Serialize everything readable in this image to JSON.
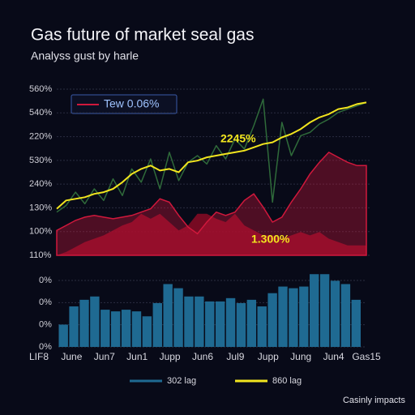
{
  "title": "Gas future of market seal gas",
  "subtitle": "Analyss gust by harle",
  "footer": "Casinly impacts",
  "annotations": [
    "2245%",
    "1.300%"
  ],
  "categories": [
    "LIF8",
    "June",
    "Jun7",
    "Jun1",
    "Jupp",
    "Jun6",
    "Jul9",
    "Jupp",
    "Jung",
    "Jun4",
    "Gas15"
  ],
  "chart_data": [
    {
      "type": "line",
      "y_labels": [
        "560%",
        "540%",
        "220%",
        "530%",
        "240%",
        "130%",
        "100%",
        "110%"
      ],
      "ylim": [
        0,
        100
      ],
      "grid": true,
      "series": [
        {
          "color": "#8a0a24",
          "style": "area",
          "values": [
            0,
            2,
            5,
            8,
            10,
            12,
            15,
            18,
            20,
            25,
            22,
            25,
            20,
            15,
            18,
            25,
            25,
            22,
            20,
            25,
            18,
            15,
            12,
            12,
            10,
            12,
            14,
            12,
            14,
            10,
            8,
            6,
            6,
            6
          ]
        },
        {
          "name": "Tew 0.06%",
          "color": "#d0183c",
          "style": "area",
          "legend": "box",
          "values": [
            15,
            18,
            21,
            23,
            24,
            23,
            22,
            23,
            24,
            26,
            28,
            34,
            32,
            24,
            17,
            13,
            20,
            26,
            24,
            26,
            33,
            37,
            29,
            20,
            23,
            32,
            40,
            49,
            56,
            62,
            59,
            56,
            54,
            54
          ]
        },
        {
          "color": "#2f6a3a",
          "style": "line",
          "values": [
            26,
            30,
            38,
            31,
            40,
            33,
            46,
            36,
            52,
            44,
            58,
            40,
            62,
            45,
            56,
            60,
            55,
            66,
            58,
            70,
            64,
            78,
            94,
            32,
            80,
            60,
            72,
            74,
            79,
            82,
            86,
            88,
            90,
            92
          ]
        },
        {
          "name": "860 lag",
          "color": "#f2e51e",
          "style": "line",
          "legend": "bottom",
          "values": [
            28,
            33,
            34,
            35,
            37,
            38,
            40,
            44,
            49,
            52,
            54,
            51,
            52,
            50,
            56,
            57,
            59,
            60,
            61,
            62,
            63,
            65,
            67,
            68,
            71,
            73,
            76,
            80,
            83,
            85,
            88,
            89,
            91,
            92
          ]
        }
      ]
    },
    {
      "type": "bar",
      "y_labels": [
        "0%",
        "0%",
        "0%",
        "0%"
      ],
      "ylim": [
        0,
        100
      ],
      "grid": true,
      "series": [
        {
          "name": "302 lag",
          "color": "#1f6a92",
          "legend": "bottom",
          "values": [
            27,
            49,
            57,
            61,
            45,
            43,
            45,
            43,
            37,
            53,
            76,
            71,
            61,
            61,
            55,
            55,
            59,
            53,
            57,
            49,
            65,
            73,
            71,
            73,
            88,
            88,
            80,
            76,
            57
          ]
        }
      ]
    }
  ]
}
